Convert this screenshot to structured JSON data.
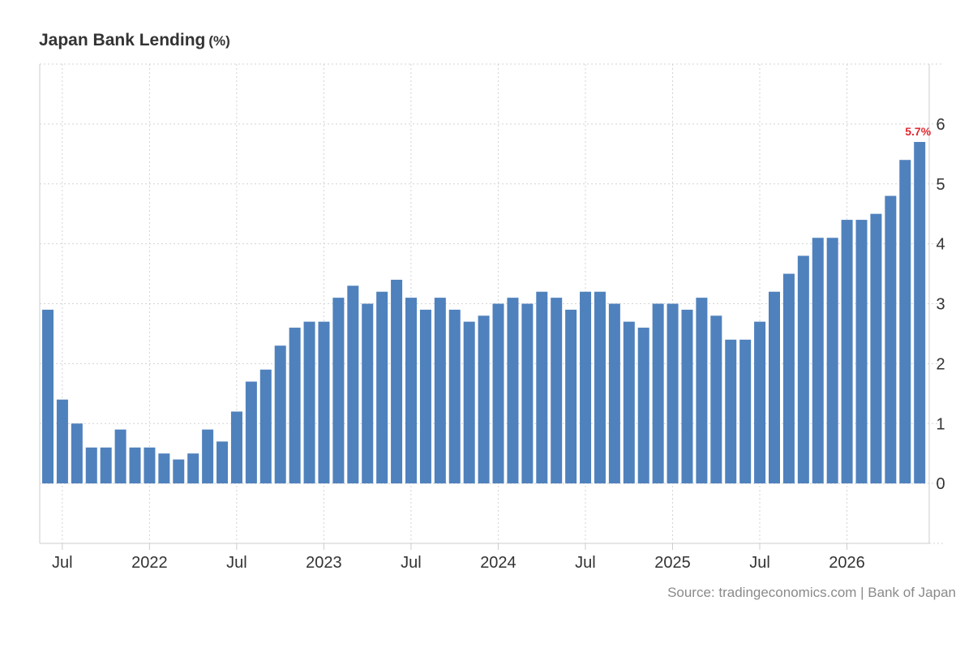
{
  "header": {
    "title": "Japan Bank Lending",
    "unit": "(%)"
  },
  "source": "Source: tradingeconomics.com | Bank of Japan",
  "colors": {
    "bar": "#4f81bd",
    "last_label": "#e0292f",
    "grid": "#d3d3d3",
    "axis_text": "#333333"
  },
  "chart_data": {
    "type": "bar",
    "title": "Japan Bank Lending",
    "ylabel": "",
    "xlabel": "",
    "ylim": [
      -1,
      7
    ],
    "yticks": [
      0,
      1,
      2,
      3,
      4,
      5,
      6
    ],
    "grid": true,
    "y_axis_position": "right",
    "x_tick_labels": [
      {
        "label": "Jul",
        "index": 2
      },
      {
        "label": "2022",
        "index": 8
      },
      {
        "label": "Jul",
        "index": 14
      },
      {
        "label": "2023",
        "index": 20
      },
      {
        "label": "Jul",
        "index": 26
      },
      {
        "label": "2024",
        "index": 32
      },
      {
        "label": "Jul",
        "index": 38
      },
      {
        "label": "2025",
        "index": 44
      },
      {
        "label": "Jul",
        "index": 50
      },
      {
        "label": "2026",
        "index": 56
      }
    ],
    "last_value_label": "5.7%",
    "values": [
      2.9,
      1.4,
      1.0,
      0.6,
      0.6,
      0.9,
      0.6,
      0.6,
      0.5,
      0.4,
      0.5,
      0.9,
      0.7,
      1.2,
      1.7,
      1.9,
      2.3,
      2.6,
      2.7,
      2.7,
      3.1,
      3.3,
      3.0,
      3.2,
      3.4,
      3.1,
      2.9,
      3.1,
      2.9,
      2.7,
      2.8,
      3.0,
      3.1,
      3.0,
      3.2,
      3.1,
      2.9,
      3.2,
      3.2,
      3.0,
      2.7,
      2.6,
      3.0,
      3.0,
      2.9,
      3.1,
      2.8,
      2.4,
      2.4,
      2.7,
      3.2,
      3.5,
      3.8,
      4.1,
      4.1,
      4.4,
      4.4,
      4.5,
      4.8,
      5.4,
      5.7
    ]
  }
}
